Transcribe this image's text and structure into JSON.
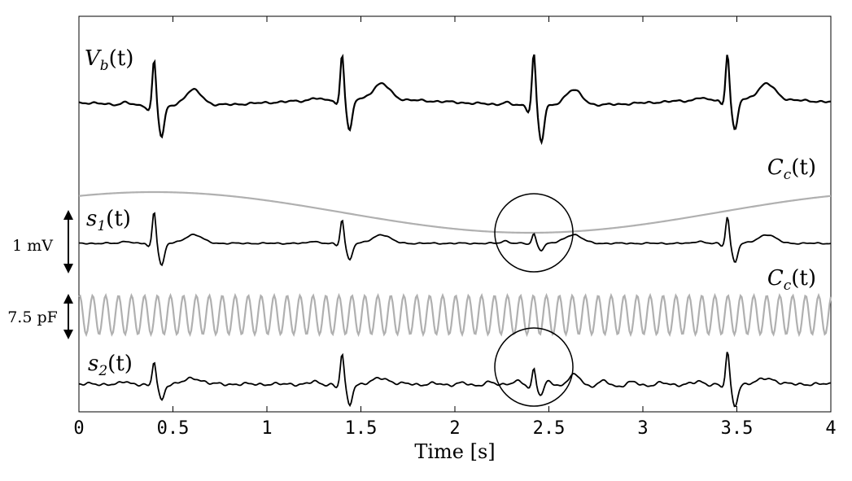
{
  "chart_data": {
    "type": "line",
    "xlabel": "Time [s]",
    "xlim": [
      0,
      4
    ],
    "xticks": [
      "0",
      "0.5",
      "1",
      "1.5",
      "2",
      "2.5",
      "3",
      "3.5",
      "4"
    ],
    "grid": false,
    "signal_color": "#000000",
    "capacitance_color": "#b0b0b0",
    "series": [
      {
        "name": "V_b(t)",
        "beats_s": [
          0.4,
          1.4,
          2.42,
          3.45
        ],
        "r_peak_amplitude": [
          1.0,
          1.0,
          1.15,
          1.0
        ]
      },
      {
        "name": "C_c(t)",
        "waveform": "slow sinusoid",
        "period_s": 4.0,
        "minimum_at_s": 2.4
      },
      {
        "name": "s_1(t)",
        "beats_s": [
          0.4,
          1.4,
          2.42,
          3.45
        ],
        "r_peak_amplitude": [
          1.0,
          0.75,
          0.3,
          0.85
        ]
      },
      {
        "name": "C_c(t)",
        "waveform": "fast sinusoid",
        "cycles_in_window": 58
      },
      {
        "name": "s_2(t)",
        "beats_s": [
          0.4,
          1.4,
          2.42,
          3.45
        ],
        "r_peak_amplitude": [
          0.75,
          1.0,
          0.6,
          1.05
        ]
      }
    ],
    "scale_bars": [
      {
        "label": "1 mV"
      },
      {
        "label": "7.5 pF"
      }
    ],
    "annotations": [
      {
        "type": "circle",
        "around_s": 2.42,
        "series": "s_1(t)"
      },
      {
        "type": "circle",
        "around_s": 2.42,
        "series": "s_2(t)"
      }
    ],
    "labels": {
      "vb": "V",
      "vb_sub": "b",
      "cc": "C",
      "cc_sub": "c",
      "s1": "s",
      "s1_sub": "1",
      "s2": "s",
      "s2_sub": "2",
      "arg": "(t)"
    }
  }
}
